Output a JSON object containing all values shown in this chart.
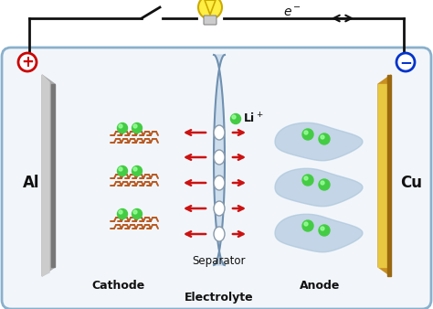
{
  "bg_color": "#ffffff",
  "box_edge": "#8ab0cc",
  "box_bg": "#f2f6fa",
  "wire_color": "#111111",
  "al_light": "#cccccc",
  "al_mid": "#aaaaaa",
  "al_dark": "#777777",
  "cu_light": "#e8c840",
  "cu_mid": "#c89020",
  "cu_dark": "#9a6810",
  "sep_fill": "#c0d4e8",
  "sep_edge": "#7090b0",
  "oval_fill": "#ffffff",
  "oval_edge": "#8899aa",
  "graphene_color": "#b85820",
  "li_green": "#44cc44",
  "li_hi": "#99ff99",
  "blob_color": "#aac4dc",
  "arrow_color": "#cc1111",
  "bulb_fill": "#ffee44",
  "bulb_edge": "#ccaa00",
  "plus_color": "#cc0000",
  "minus_color": "#0033cc",
  "label_color": "#111111",
  "al_label": "Al",
  "cu_label": "Cu",
  "cathode_label": "Cathode",
  "anode_label": "Anode",
  "sep_label": "Separator",
  "elec_label": "Electrolyte",
  "li_label": "Li",
  "e_label": "e"
}
